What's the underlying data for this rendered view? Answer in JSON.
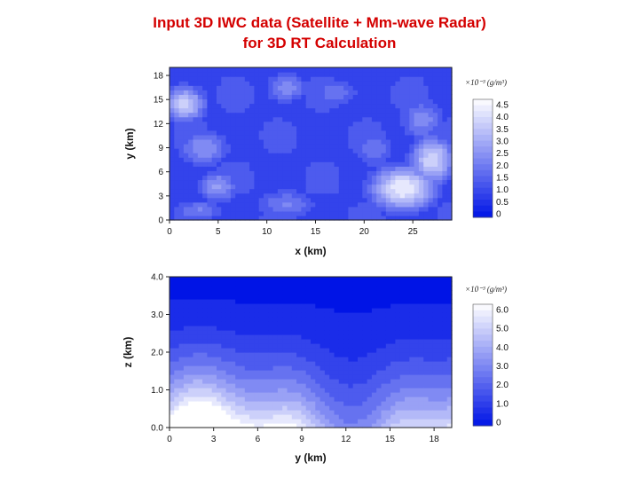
{
  "title": {
    "line1": "Input 3D IWC data (Satellite + Mm-wave Radar)",
    "line2": "for 3D RT Calculation"
  },
  "colors": {
    "title": "#d40000",
    "ramp_low": "#0014e6",
    "ramp_high": "#ffffff"
  },
  "chart_data": [
    {
      "type": "heatmap",
      "title": "",
      "xlabel": "x (km)",
      "ylabel": "y (km)",
      "xlim": [
        0,
        29
      ],
      "ylim": [
        0,
        19
      ],
      "x_ticks": [
        "0",
        "5",
        "10",
        "15",
        "20",
        "25"
      ],
      "y_ticks": [
        "0",
        "3",
        "6",
        "9",
        "12",
        "15",
        "18"
      ],
      "colorbar_unit": "×10⁻³ (g/m³)",
      "colorbar_labels": [
        "4.5",
        "4.0",
        "3.5",
        "3.0",
        "2.5",
        "2.0",
        "1.5",
        "1.0",
        "0.5",
        "0"
      ],
      "value_range": [
        0,
        4.8
      ],
      "features": [
        {
          "x": 1.5,
          "y": 14.5,
          "value": 3.8,
          "sx": 2.4,
          "sy": 2.4
        },
        {
          "x": 3.5,
          "y": 9.0,
          "value": 2.6,
          "sx": 3.0,
          "sy": 2.6
        },
        {
          "x": 5.0,
          "y": 4.2,
          "value": 2.8,
          "sx": 2.2,
          "sy": 2.2
        },
        {
          "x": 3.0,
          "y": 1.2,
          "value": 2.2,
          "sx": 3.0,
          "sy": 1.6
        },
        {
          "x": 12.0,
          "y": 2.0,
          "value": 2.2,
          "sx": 3.6,
          "sy": 2.2
        },
        {
          "x": 12.0,
          "y": 16.5,
          "value": 2.4,
          "sx": 2.5,
          "sy": 2.2
        },
        {
          "x": 17.0,
          "y": 16.0,
          "value": 2.0,
          "sx": 3.0,
          "sy": 2.0
        },
        {
          "x": 21.0,
          "y": 9.0,
          "value": 2.0,
          "sx": 2.5,
          "sy": 3.0
        },
        {
          "x": 24.0,
          "y": 4.0,
          "value": 4.5,
          "sx": 3.6,
          "sy": 3.0
        },
        {
          "x": 27.0,
          "y": 7.5,
          "value": 4.0,
          "sx": 2.4,
          "sy": 3.2
        },
        {
          "x": 26.0,
          "y": 12.5,
          "value": 2.4,
          "sx": 2.6,
          "sy": 3.0
        }
      ],
      "background_value": 1.1
    },
    {
      "type": "heatmap",
      "title": "",
      "xlabel": "y (km)",
      "ylabel": "z (km)",
      "xlim": [
        0,
        19.2
      ],
      "ylim": [
        0,
        4.0
      ],
      "x_ticks": [
        "0",
        "3",
        "6",
        "9",
        "12",
        "15",
        "18"
      ],
      "y_ticks": [
        "0.0",
        "1.0",
        "2.0",
        "3.0",
        "4.0"
      ],
      "colorbar_unit": "×10⁻³ (g/m³)",
      "colorbar_labels": [
        "6.0",
        "5.0",
        "4.0",
        "3.0",
        "2.0",
        "1.0",
        "0"
      ],
      "value_range": [
        0,
        6.5
      ],
      "profile": "decreasing_with_height",
      "surface_value": 5.8,
      "top_value": 0.2
    }
  ]
}
